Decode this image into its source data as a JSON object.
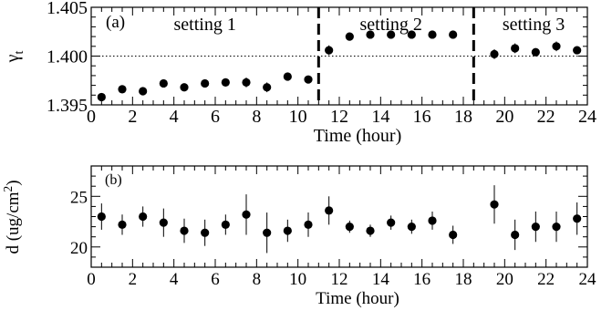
{
  "chart_data": [
    {
      "type": "scatter",
      "panel_label": "(a)",
      "xlabel": "Time (hour)",
      "ylabel_main": "γ",
      "ylabel_sub": "t",
      "xlim": [
        0,
        24
      ],
      "ylim": [
        1.395,
        1.405
      ],
      "x_ticks": [
        0,
        2,
        4,
        6,
        8,
        10,
        12,
        14,
        16,
        18,
        20,
        22,
        24
      ],
      "y_ticks": [
        1.395,
        1.4,
        1.405
      ],
      "y_tick_labels": [
        "1.395",
        "1.400",
        "1.405"
      ],
      "reference_line": {
        "y": 1.4,
        "style": "dotted"
      },
      "dividers": [
        11,
        18.5
      ],
      "settings": [
        {
          "label": "setting 1",
          "x_center": 5.5
        },
        {
          "label": "setting 2",
          "x_center": 14.5
        },
        {
          "label": "setting 3",
          "x_center": 21.4
        }
      ],
      "series": [
        {
          "x": [
            0.5,
            1.5,
            2.5,
            3.5,
            4.5,
            5.5,
            6.5,
            7.5,
            8.5,
            9.5,
            10.5,
            11.5,
            12.5,
            13.5,
            14.5,
            15.5,
            16.5,
            17.5,
            19.5,
            20.5,
            21.5,
            22.5,
            23.5
          ],
          "y": [
            1.3958,
            1.3966,
            1.3964,
            1.3972,
            1.3968,
            1.3972,
            1.3973,
            1.3973,
            1.3968,
            1.3979,
            1.3976,
            1.4006,
            1.402,
            1.4022,
            1.4022,
            1.4022,
            1.4022,
            1.4022,
            1.4002,
            1.4008,
            1.4004,
            1.401,
            1.4006
          ],
          "err": [
            0.0003,
            0.0003,
            0.0003,
            0.0004,
            0.0003,
            0.0003,
            0.0003,
            0.0005,
            0.0005,
            0.0004,
            0.0003,
            0.0005,
            0.0003,
            0.0003,
            0.0003,
            0.0003,
            0.0004,
            0.0004,
            0.0005,
            0.0005,
            0.0004,
            0.0005,
            0.0004
          ]
        }
      ]
    },
    {
      "type": "scatter",
      "panel_label": "(b)",
      "xlabel": "Time (hour)",
      "ylabel_main": "d (ug/cm",
      "ylabel_sup": "2",
      "ylabel_end": ")",
      "xlim": [
        0,
        24
      ],
      "ylim": [
        18,
        28
      ],
      "x_ticks": [
        0,
        2,
        4,
        6,
        8,
        10,
        12,
        14,
        16,
        18,
        20,
        22,
        24
      ],
      "y_ticks": [
        20,
        25
      ],
      "y_tick_labels": [
        "20",
        "25"
      ],
      "series": [
        {
          "x": [
            0.5,
            1.5,
            2.5,
            3.5,
            4.5,
            5.5,
            6.5,
            7.5,
            8.5,
            9.5,
            10.5,
            11.5,
            12.5,
            13.5,
            14.5,
            15.5,
            16.5,
            17.5,
            19.5,
            20.5,
            21.5,
            22.5,
            23.5
          ],
          "y": [
            23.0,
            22.2,
            23.0,
            22.4,
            21.6,
            21.4,
            22.2,
            23.2,
            21.4,
            21.6,
            22.2,
            23.6,
            22.0,
            21.6,
            22.4,
            22.0,
            22.6,
            21.2,
            24.2,
            21.2,
            22.0,
            22.0,
            22.8
          ],
          "err": [
            1.3,
            1.0,
            1.0,
            1.4,
            1.2,
            1.3,
            1.0,
            2.0,
            2.0,
            1.1,
            1.2,
            1.4,
            0.6,
            0.6,
            0.7,
            0.7,
            0.9,
            0.9,
            1.9,
            1.5,
            1.5,
            1.5,
            1.6
          ]
        }
      ]
    }
  ]
}
